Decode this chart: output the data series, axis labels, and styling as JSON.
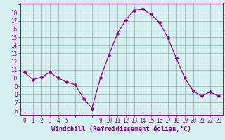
{
  "x": [
    0,
    1,
    2,
    3,
    4,
    5,
    6,
    7,
    8,
    9,
    10,
    11,
    12,
    13,
    14,
    15,
    16,
    17,
    18,
    19,
    20,
    21,
    22,
    23
  ],
  "y": [
    10.7,
    9.8,
    10.1,
    10.7,
    10.0,
    9.5,
    9.2,
    7.5,
    6.3,
    10.0,
    12.8,
    15.4,
    17.1,
    18.3,
    18.4,
    17.8,
    16.8,
    14.9,
    12.4,
    10.0,
    8.4,
    7.8,
    8.3,
    7.8
  ],
  "line_color": "#990099",
  "marker": "D",
  "marker_size": 2,
  "bg_color": "#d4f0f0",
  "grid_color": "#aaaaaa",
  "xlabel": "Windchill (Refroidissement éolien,°C)",
  "xlabel_color": "#990099",
  "tick_color": "#990099",
  "yticks": [
    6,
    7,
    8,
    9,
    10,
    11,
    12,
    13,
    14,
    15,
    16,
    17,
    18
  ],
  "ylim": [
    5.5,
    19.2
  ],
  "xlim": [
    -0.5,
    23.5
  ],
  "xticks": [
    0,
    1,
    2,
    3,
    4,
    5,
    9,
    10,
    11,
    12,
    13,
    14,
    15,
    16,
    17,
    18,
    19,
    20,
    21,
    22,
    23
  ],
  "tick_fontsize": 5.5,
  "xlabel_fontsize": 6.5
}
